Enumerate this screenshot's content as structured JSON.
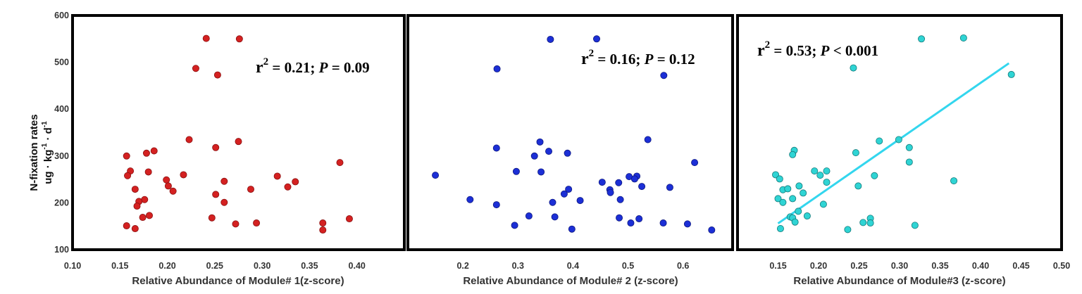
{
  "figure": {
    "ylabel_line1": "N-fixation rates",
    "ylabel_unit": {
      "ug": "ug",
      "kg": "kg",
      "kg_exp": "-1",
      "d": "d",
      "d_exp": "-1"
    },
    "yticks": [
      "100",
      "200",
      "300",
      "400",
      "500",
      "600"
    ]
  },
  "chart_data": [
    {
      "type": "scatter",
      "xlabel": "Relative Abundance of Module# 1(z-score)",
      "xlim": [
        0.1,
        0.45
      ],
      "ylim": [
        100,
        600
      ],
      "xticks": [
        "0.10",
        "0.15",
        "0.20",
        "0.25",
        "0.30",
        "0.35",
        "0.40"
      ],
      "stat": {
        "r": "r",
        "sup": "2",
        "mid": " = 0.21; ",
        "p": "P",
        "tail": " = 0.09"
      },
      "color": "#d42121",
      "stroke": "#8a1010",
      "points": [
        [
          0.241,
          551
        ],
        [
          0.276,
          550
        ],
        [
          0.23,
          487
        ],
        [
          0.253,
          473
        ],
        [
          0.223,
          335
        ],
        [
          0.275,
          331
        ],
        [
          0.251,
          318
        ],
        [
          0.186,
          311
        ],
        [
          0.178,
          306
        ],
        [
          0.157,
          300
        ],
        [
          0.382,
          286
        ],
        [
          0.161,
          268
        ],
        [
          0.18,
          266
        ],
        [
          0.217,
          260
        ],
        [
          0.158,
          258
        ],
        [
          0.316,
          257
        ],
        [
          0.199,
          249
        ],
        [
          0.26,
          246
        ],
        [
          0.335,
          245
        ],
        [
          0.201,
          236
        ],
        [
          0.327,
          234
        ],
        [
          0.166,
          229
        ],
        [
          0.288,
          229
        ],
        [
          0.206,
          225
        ],
        [
          0.251,
          218
        ],
        [
          0.176,
          207
        ],
        [
          0.17,
          203
        ],
        [
          0.26,
          201
        ],
        [
          0.168,
          193
        ],
        [
          0.181,
          173
        ],
        [
          0.174,
          169
        ],
        [
          0.247,
          168
        ],
        [
          0.272,
          155
        ],
        [
          0.294,
          157
        ],
        [
          0.364,
          157
        ],
        [
          0.392,
          166
        ],
        [
          0.157,
          151
        ],
        [
          0.166,
          145
        ],
        [
          0.364,
          142
        ]
      ]
    },
    {
      "type": "scatter",
      "xlabel": "Relative Abundance of Module# 2 (z-score)",
      "xlim": [
        0.1,
        0.69
      ],
      "ylim": [
        100,
        600
      ],
      "xticks": [
        "0.2",
        "0.3",
        "0.4",
        "0.5",
        "0.6"
      ],
      "stat": {
        "r": "r",
        "sup": "2",
        "mid": " = 0.16; ",
        "p": "P",
        "tail": " = 0.12"
      },
      "color": "#1c2fd6",
      "stroke": "#0d1880",
      "points": [
        [
          0.359,
          549
        ],
        [
          0.443,
          550
        ],
        [
          0.262,
          486
        ],
        [
          0.565,
          472
        ],
        [
          0.536,
          335
        ],
        [
          0.34,
          330
        ],
        [
          0.261,
          317
        ],
        [
          0.356,
          310
        ],
        [
          0.39,
          306
        ],
        [
          0.33,
          300
        ],
        [
          0.621,
          286
        ],
        [
          0.297,
          267
        ],
        [
          0.342,
          266
        ],
        [
          0.15,
          259
        ],
        [
          0.502,
          256
        ],
        [
          0.516,
          257
        ],
        [
          0.512,
          251
        ],
        [
          0.453,
          244
        ],
        [
          0.483,
          243
        ],
        [
          0.525,
          235
        ],
        [
          0.576,
          233
        ],
        [
          0.392,
          229
        ],
        [
          0.467,
          228
        ],
        [
          0.468,
          222
        ],
        [
          0.384,
          219
        ],
        [
          0.213,
          207
        ],
        [
          0.413,
          205
        ],
        [
          0.486,
          207
        ],
        [
          0.363,
          201
        ],
        [
          0.261,
          196
        ],
        [
          0.32,
          172
        ],
        [
          0.367,
          170
        ],
        [
          0.484,
          168
        ],
        [
          0.52,
          166
        ],
        [
          0.505,
          157
        ],
        [
          0.564,
          157
        ],
        [
          0.608,
          155
        ],
        [
          0.294,
          152
        ],
        [
          0.398,
          144
        ],
        [
          0.652,
          142
        ]
      ]
    },
    {
      "type": "scatter",
      "xlabel": "Relative Abundance of Module#3 (z-score)",
      "xlim": [
        0.1,
        0.5
      ],
      "ylim": [
        100,
        600
      ],
      "xticks": [
        "0.15",
        "0.20",
        "0.25",
        "0.30",
        "0.35",
        "0.40",
        "0.45",
        "0.50"
      ],
      "stat": {
        "r": "r",
        "sup": "2",
        "mid": " = 0.53; ",
        "p": "P",
        "tail": " < 0.001"
      },
      "color": "#2fd4d4",
      "stroke": "#147a7a",
      "fit_line": {
        "x": [
          0.15,
          0.435
        ],
        "y": [
          156,
          498
        ],
        "color": "#33d6ee"
      },
      "points": [
        [
          0.327,
          550
        ],
        [
          0.379,
          552
        ],
        [
          0.243,
          488
        ],
        [
          0.438,
          474
        ],
        [
          0.299,
          335
        ],
        [
          0.275,
          332
        ],
        [
          0.312,
          318
        ],
        [
          0.17,
          312
        ],
        [
          0.168,
          303
        ],
        [
          0.246,
          307
        ],
        [
          0.312,
          287
        ],
        [
          0.195,
          268
        ],
        [
          0.21,
          268
        ],
        [
          0.147,
          260
        ],
        [
          0.202,
          259
        ],
        [
          0.269,
          258
        ],
        [
          0.152,
          251
        ],
        [
          0.367,
          247
        ],
        [
          0.21,
          244
        ],
        [
          0.176,
          236
        ],
        [
          0.249,
          236
        ],
        [
          0.156,
          228
        ],
        [
          0.162,
          230
        ],
        [
          0.181,
          221
        ],
        [
          0.15,
          209
        ],
        [
          0.168,
          209
        ],
        [
          0.156,
          201
        ],
        [
          0.206,
          197
        ],
        [
          0.175,
          182
        ],
        [
          0.186,
          172
        ],
        [
          0.165,
          170
        ],
        [
          0.168,
          168
        ],
        [
          0.264,
          167
        ],
        [
          0.255,
          158
        ],
        [
          0.264,
          157
        ],
        [
          0.171,
          159
        ],
        [
          0.319,
          152
        ],
        [
          0.153,
          145
        ],
        [
          0.236,
          143
        ]
      ]
    }
  ]
}
